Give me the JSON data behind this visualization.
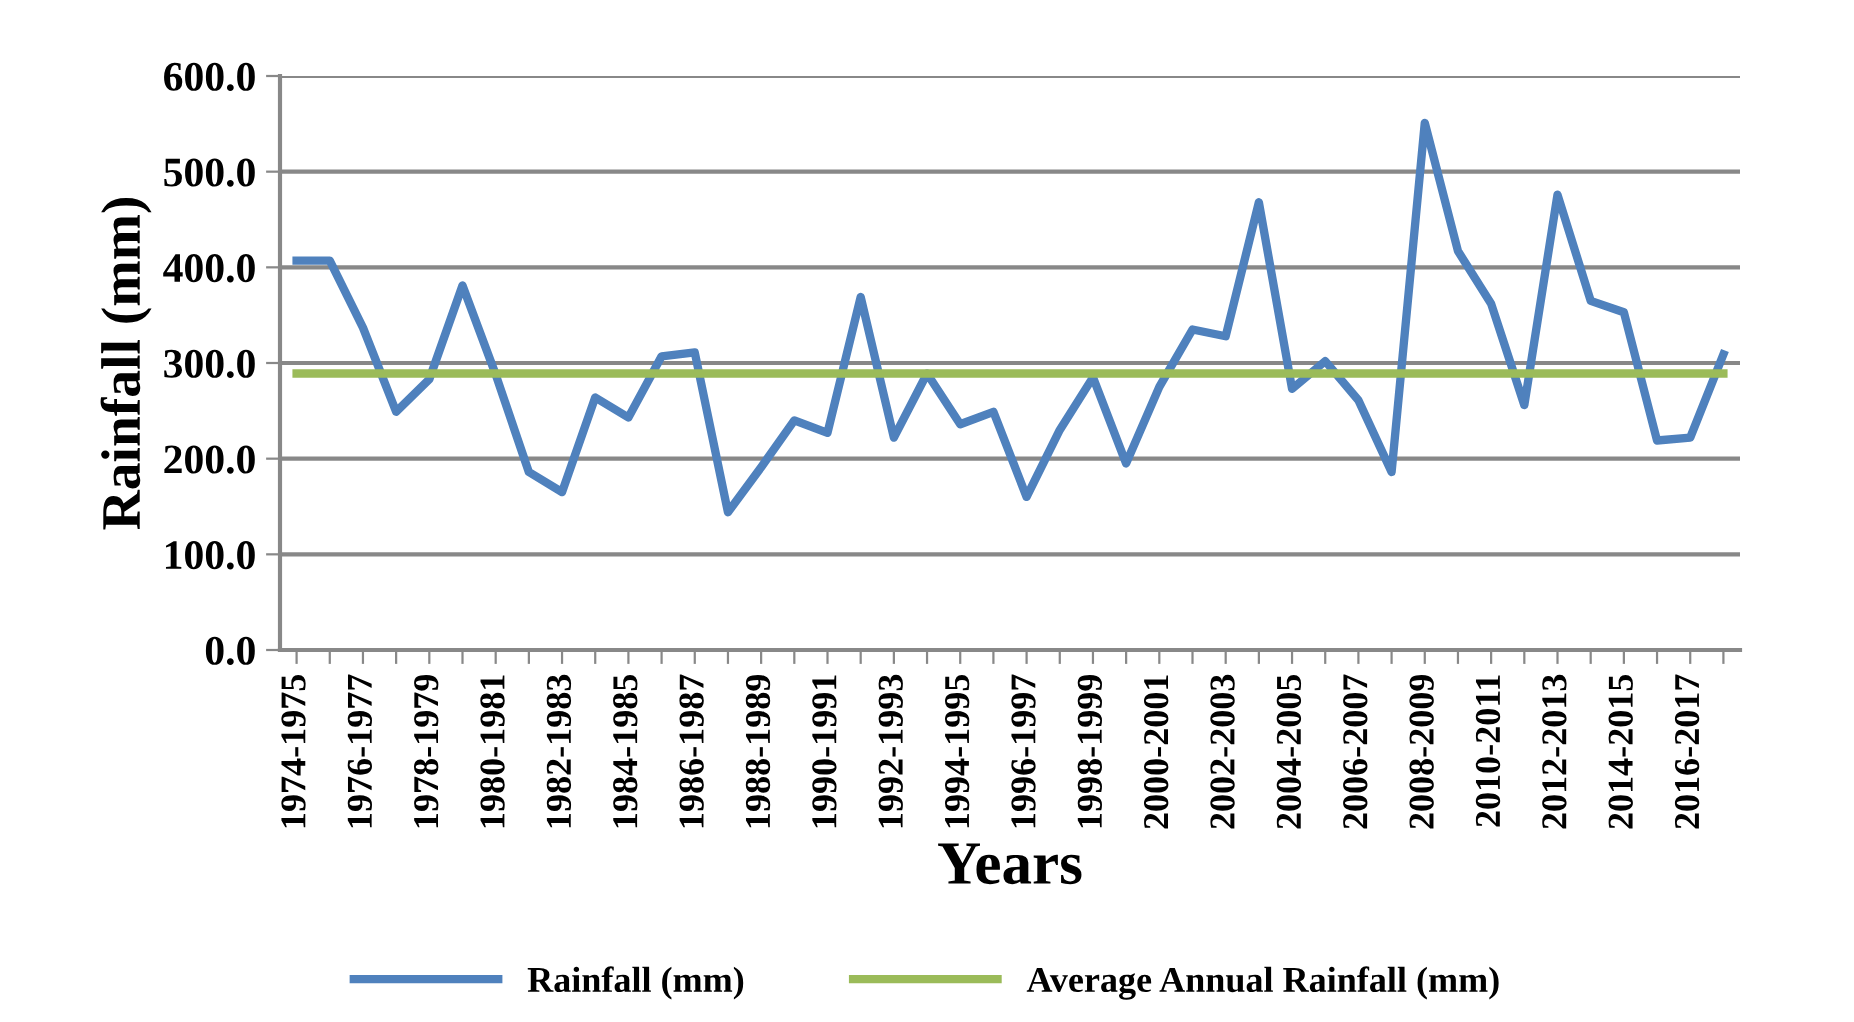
{
  "chart_data": {
    "type": "line",
    "xlabel": "Years",
    "ylabel": "Rainfall (mm)",
    "categories": [
      "1974-1975",
      null,
      "1976-1977",
      null,
      "1978-1979",
      null,
      "1980-1981",
      null,
      "1982-1983",
      null,
      "1984-1985",
      null,
      "1986-1987",
      null,
      "1988-1989",
      null,
      "1990-1991",
      null,
      "1992-1993",
      null,
      "1994-1995",
      null,
      "1996-1997",
      null,
      "1998-1999",
      null,
      "2000-2001",
      null,
      "2002-2003",
      null,
      "2004-2005",
      null,
      "2006-2007",
      null,
      "2008-2009",
      null,
      "2010-2011",
      null,
      "2012-2013",
      null,
      "2014-2015",
      null,
      "2016-2017",
      null
    ],
    "series": [
      {
        "name": "Rainfall (mm)",
        "color": "#4f81bd",
        "values": [
          407,
          407,
          337,
          249,
          283,
          381,
          288,
          186,
          165,
          264,
          243,
          307,
          311,
          144,
          191,
          240,
          227,
          369,
          222,
          289,
          236,
          249,
          160,
          230,
          285,
          195,
          275,
          335,
          328,
          468,
          273,
          302,
          261,
          186,
          551,
          417,
          362,
          256,
          476,
          365,
          353,
          219,
          222,
          309
        ]
      },
      {
        "name": "Average Annual Rainfall (mm)",
        "color": "#9bbb59",
        "values": [
          289,
          289,
          289,
          289,
          289,
          289,
          289,
          289,
          289,
          289,
          289,
          289,
          289,
          289,
          289,
          289,
          289,
          289,
          289,
          289,
          289,
          289,
          289,
          289,
          289,
          289,
          289,
          289,
          289,
          289,
          289,
          289,
          289,
          289,
          289,
          289,
          289,
          289,
          289,
          289,
          289,
          289,
          289,
          289
        ]
      }
    ],
    "ylim": [
      0,
      600
    ],
    "yticks": [
      {
        "value": 0,
        "label": "0.0"
      },
      {
        "value": 100,
        "label": "100.0"
      },
      {
        "value": 200,
        "label": "200.0"
      },
      {
        "value": 300,
        "label": "300.0"
      },
      {
        "value": 400,
        "label": "400.0"
      },
      {
        "value": 500,
        "label": "500.0"
      },
      {
        "value": 600,
        "label": "600.0"
      }
    ],
    "grid": "y",
    "legend": "bottom",
    "marker": "none",
    "line_style": "solid"
  }
}
